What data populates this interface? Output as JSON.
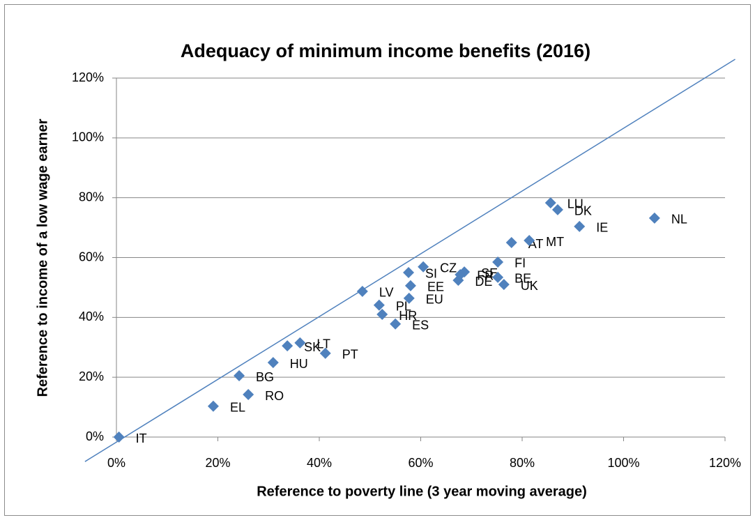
{
  "chart_data": {
    "type": "scatter",
    "title": "Adequacy of minimum income benefits (2016)",
    "x_label": "Reference to poverty line (3 year moving average)",
    "y_label": "Reference to income of a low wage earner",
    "point_labels": [
      "IT",
      "EL",
      "BG",
      "RO",
      "HU",
      "SK",
      "LT",
      "PT",
      "LV",
      "PL",
      "HR",
      "ES",
      "SI",
      "EE",
      "EU",
      "CZ",
      "SE",
      "FR",
      "DE",
      "BE",
      "UK",
      "FI",
      "AT",
      "MT",
      "LU",
      "DK",
      "IE",
      "NL"
    ],
    "x": [
      0.5,
      19.1,
      24.2,
      26.0,
      30.9,
      33.7,
      36.2,
      41.2,
      48.5,
      51.8,
      52.4,
      55.0,
      57.6,
      58.0,
      57.7,
      60.5,
      68.6,
      67.8,
      67.4,
      75.2,
      76.4,
      75.2,
      77.9,
      81.4,
      85.6,
      87.0,
      91.3,
      106.1
    ],
    "values": [
      0.0,
      10.3,
      20.5,
      14.2,
      24.9,
      30.5,
      31.5,
      28.0,
      48.7,
      44.1,
      41.0,
      37.8,
      55.0,
      50.6,
      46.4,
      56.9,
      55.2,
      54.3,
      52.4,
      53.4,
      51.0,
      58.5,
      65.0,
      65.7,
      78.3,
      76.0,
      70.4,
      73.2
    ],
    "color": "#4f81bd",
    "reference_line": {
      "x": [
        -6.2,
        122
      ],
      "values": [
        -8.2,
        126.3
      ],
      "color": "#4f81bd"
    },
    "xlim": [
      0,
      120
    ],
    "ylim": [
      0,
      120
    ],
    "xticks": [
      {
        "value": 0,
        "label": "0%"
      },
      {
        "value": 20,
        "label": "20%"
      },
      {
        "value": 40,
        "label": "40%"
      },
      {
        "value": 60,
        "label": "60%"
      },
      {
        "value": 80,
        "label": "80%"
      },
      {
        "value": 100,
        "label": "100%"
      },
      {
        "value": 120,
        "label": "120%"
      }
    ],
    "yticks": [
      {
        "value": 0,
        "label": "0%"
      },
      {
        "value": 20,
        "label": "20%"
      },
      {
        "value": 40,
        "label": "40%"
      },
      {
        "value": 60,
        "label": "60%"
      },
      {
        "value": 80,
        "label": "80%"
      },
      {
        "value": 100,
        "label": "100%"
      },
      {
        "value": 120,
        "label": "120%"
      }
    ],
    "grid": true
  }
}
